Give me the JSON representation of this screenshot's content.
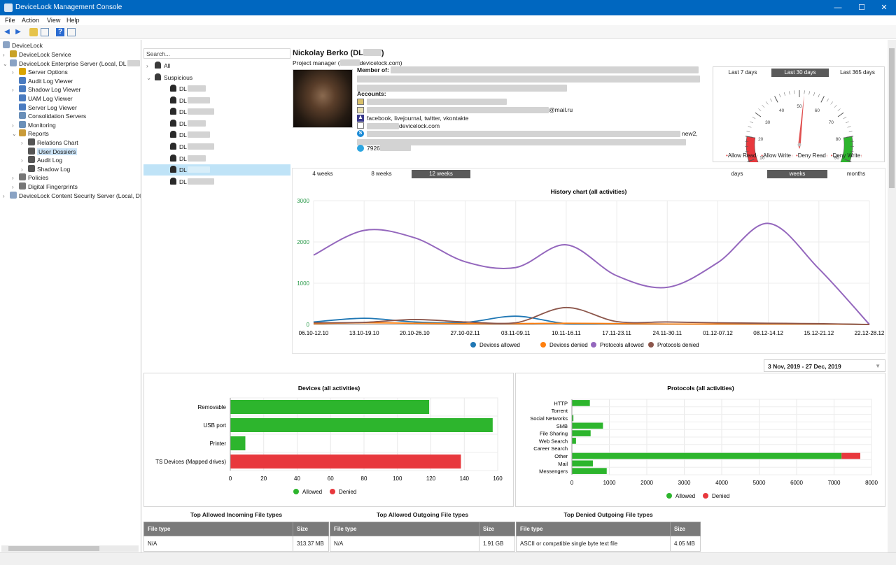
{
  "window": {
    "title": "DeviceLock Management Console",
    "minimize": "—",
    "maximize": "☐",
    "close": "✕"
  },
  "menu": [
    "File",
    "Action",
    "View",
    "Help"
  ],
  "tree": {
    "root": "DeviceLock",
    "items": [
      {
        "label": "DeviceLock Service",
        "level": 1,
        "arrow": "›",
        "color": "#c9a227"
      },
      {
        "label": "DeviceLock Enterprise Server (Local, DL",
        "level": 1,
        "arrow": "⌄",
        "color": "#8aa3c4"
      },
      {
        "label": "Server Options",
        "level": 2,
        "arrow": "›",
        "color": "#d9a400"
      },
      {
        "label": "Audit Log Viewer",
        "level": 2,
        "arrow": "",
        "color": "#4a7bc0"
      },
      {
        "label": "Shadow Log Viewer",
        "level": 2,
        "arrow": "›",
        "color": "#4a7bc0"
      },
      {
        "label": "UAM Log Viewer",
        "level": 2,
        "arrow": "",
        "color": "#4a7bc0"
      },
      {
        "label": "Server Log Viewer",
        "level": 2,
        "arrow": "",
        "color": "#4a7bc0"
      },
      {
        "label": "Consolidation Servers",
        "level": 2,
        "arrow": "",
        "color": "#6a8fb8"
      },
      {
        "label": "Monitoring",
        "level": 2,
        "arrow": "›",
        "color": "#6a8fb8"
      },
      {
        "label": "Reports",
        "level": 2,
        "arrow": "⌄",
        "color": "#c99b3a"
      },
      {
        "label": "Relations Chart",
        "level": 3,
        "arrow": "›",
        "color": "#555"
      },
      {
        "label": "User Dossiers",
        "level": 3,
        "arrow": "",
        "color": "#555",
        "selected": true
      },
      {
        "label": "Audit Log",
        "level": 3,
        "arrow": "›",
        "color": "#555"
      },
      {
        "label": "Shadow Log",
        "level": 3,
        "arrow": "›",
        "color": "#555"
      },
      {
        "label": "Policies",
        "level": 2,
        "arrow": "›",
        "color": "#777"
      },
      {
        "label": "Digital Fingerprints",
        "level": 2,
        "arrow": "›",
        "color": "#777"
      },
      {
        "label": "DeviceLock Content Security Server (Local, DL",
        "level": 1,
        "arrow": "›",
        "color": "#8aa3c4"
      }
    ]
  },
  "users": {
    "search_placeholder": "Search...",
    "groups": [
      {
        "label": "All",
        "arrow": "›"
      },
      {
        "label": "Suspicious",
        "arrow": "⌄"
      }
    ],
    "items": [
      "DL",
      "DL",
      "DL",
      "DL",
      "DL",
      "DL",
      "DL",
      "DL",
      "DL"
    ],
    "selected_index": 7
  },
  "profile": {
    "name": "Nickolay Berko (DL",
    "name_close": ")",
    "title_prefix": "Project manager (",
    "title_suffix": "devicelock.com)",
    "member_of": "Member of:",
    "accounts": "Accounts:",
    "mail": "@mail.ru",
    "social": "facebook, livejournal, twitter, vkontakte",
    "domain_account": "devicelock.com",
    "skype_tail": "new2,",
    "phone_prefix": "7926"
  },
  "gauge": {
    "tabs": [
      "Last 7 days",
      "Last 30 days",
      "Last 365 days"
    ],
    "active_tab": 1,
    "ticks": [
      "0",
      "10",
      "20",
      "30",
      "40",
      "50",
      "60",
      "70",
      "80",
      "90",
      "100"
    ],
    "value": 52,
    "legend": [
      "Allow Read",
      "Allow Write",
      "Deny Read",
      "Deny Write"
    ],
    "colors": {
      "low": "#e8383d",
      "high": "#2db52d",
      "needle": "#e05050"
    }
  },
  "history": {
    "range_tabs": [
      "4 weeks",
      "8 weeks",
      "12 weeks"
    ],
    "active_range": 2,
    "unit_tabs": [
      "days",
      "weeks",
      "months"
    ],
    "active_unit": 1,
    "date_range": "3 Nov, 2019 - 27 Dec, 2019",
    "dropdown_icon": "▼"
  },
  "chart_data": [
    {
      "type": "line",
      "title": "History chart (all activities)",
      "categories": [
        "06.10-12.10",
        "13.10-19.10",
        "20.10-26.10",
        "27.10-02.11",
        "03.11-09.11",
        "10.11-16.11",
        "17.11-23.11",
        "24.11-30.11",
        "01.12-07.12",
        "08.12-14.12",
        "15.12-21.12",
        "22.12-28.12"
      ],
      "ylim": [
        0,
        3000
      ],
      "yticks": [
        0,
        1000,
        2000,
        3000
      ],
      "series": [
        {
          "name": "Devices allowed",
          "color": "#1f77b4",
          "values": [
            60,
            150,
            60,
            50,
            200,
            20,
            20,
            10,
            10,
            10,
            10,
            0
          ]
        },
        {
          "name": "Devices denied",
          "color": "#ff7f0e",
          "values": [
            20,
            40,
            30,
            20,
            20,
            30,
            20,
            10,
            10,
            10,
            10,
            0
          ]
        },
        {
          "name": "Protocols allowed",
          "color": "#9467bd",
          "values": [
            1680,
            2280,
            2100,
            1520,
            1380,
            1930,
            1180,
            900,
            1500,
            2450,
            1350,
            0
          ]
        },
        {
          "name": "Protocols denied",
          "color": "#8c564b",
          "values": [
            40,
            50,
            120,
            60,
            40,
            410,
            70,
            60,
            40,
            30,
            20,
            0
          ]
        }
      ]
    },
    {
      "type": "bar",
      "title": "Devices (all activities)",
      "categories": [
        "Removable",
        "USB port",
        "Printer",
        "TS Devices (Mapped drives)"
      ],
      "xlim": [
        0,
        160
      ],
      "xticks": [
        0,
        20,
        40,
        60,
        80,
        100,
        120,
        140,
        160
      ],
      "series": [
        {
          "name": "Allowed",
          "color": "#2db52d",
          "values": [
            119,
            157,
            9,
            0
          ]
        },
        {
          "name": "Denied",
          "color": "#e8383d",
          "values": [
            0,
            0,
            0,
            138
          ]
        }
      ]
    },
    {
      "type": "bar",
      "title": "Protocols (all activities)",
      "categories": [
        "HTTP",
        "Torrent",
        "Social Networks",
        "SMB",
        "File Sharing",
        "Web Search",
        "Career Search",
        "Other",
        "Mail",
        "Messengers"
      ],
      "xlim": [
        0,
        8000
      ],
      "xticks": [
        0,
        1000,
        2000,
        3000,
        4000,
        5000,
        6000,
        7000,
        8000
      ],
      "series": [
        {
          "name": "Allowed",
          "color": "#2db52d",
          "values": [
            480,
            0,
            40,
            830,
            500,
            110,
            0,
            7200,
            560,
            930
          ]
        },
        {
          "name": "Denied",
          "color": "#e8383d",
          "values": [
            0,
            0,
            0,
            0,
            0,
            0,
            0,
            500,
            0,
            0
          ]
        }
      ]
    }
  ],
  "tables": [
    {
      "title": "Top Allowed Incoming File types",
      "headers": [
        "File type",
        "Size"
      ],
      "rows": [
        [
          "N/A",
          "313.37 MB"
        ]
      ]
    },
    {
      "title": "Top Allowed Outgoing File types",
      "headers": [
        "File type",
        "Size"
      ],
      "rows": [
        [
          "N/A",
          "1.91 GB"
        ]
      ]
    },
    {
      "title": "Top Denied Outgoing File types",
      "headers": [
        "File type",
        "Size"
      ],
      "rows": [
        [
          "ASCII or compatible single byte text file",
          "4.05 MB"
        ]
      ]
    }
  ]
}
